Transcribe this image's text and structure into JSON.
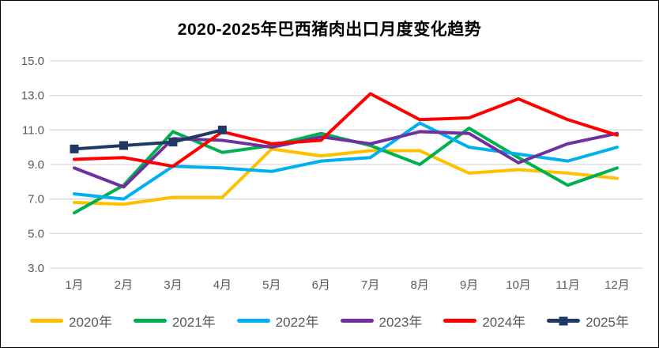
{
  "chart_data": {
    "type": "line",
    "title": "2020-2025年巴西猪肉出口月度变化趋势",
    "categories": [
      "1月",
      "2月",
      "3月",
      "4月",
      "5月",
      "6月",
      "7月",
      "8月",
      "9月",
      "10月",
      "11月",
      "12月"
    ],
    "series": [
      {
        "name": "2020年",
        "color": "#FFC000",
        "values": [
          6.8,
          6.7,
          7.1,
          7.1,
          9.9,
          9.5,
          9.8,
          9.8,
          8.5,
          8.7,
          8.5,
          8.2
        ]
      },
      {
        "name": "2021年",
        "color": "#00B050",
        "values": [
          6.2,
          7.8,
          10.9,
          9.7,
          10.1,
          10.8,
          10.1,
          9.0,
          11.1,
          9.4,
          7.8,
          8.8
        ]
      },
      {
        "name": "2022年",
        "color": "#00B0F0",
        "values": [
          7.3,
          7.0,
          8.9,
          8.8,
          8.6,
          9.2,
          9.4,
          11.4,
          10.0,
          9.6,
          9.2,
          10.0
        ]
      },
      {
        "name": "2023年",
        "color": "#7030A0",
        "values": [
          8.8,
          7.7,
          10.5,
          10.4,
          10.0,
          10.6,
          10.2,
          10.9,
          10.8,
          9.1,
          10.2,
          10.8
        ]
      },
      {
        "name": "2024年",
        "color": "#FF0000",
        "values": [
          9.3,
          9.4,
          8.9,
          10.9,
          10.2,
          10.4,
          13.1,
          11.6,
          11.7,
          12.8,
          11.6,
          10.7
        ]
      },
      {
        "name": "2025年",
        "color": "#1F3864",
        "marker": "square",
        "values": [
          9.9,
          10.1,
          10.3,
          11.0
        ]
      }
    ],
    "ylim": [
      3.0,
      15.0
    ],
    "ytick_labels": [
      "3.0",
      "5.0",
      "7.0",
      "9.0",
      "11.0",
      "13.0",
      "15.0"
    ],
    "grid": true,
    "legend_position": "bottom"
  },
  "colors": {
    "background": "#FFFFFF",
    "border": "#000000",
    "gridline": "#D9D9D9",
    "axis_text": "#595959",
    "title_text": "#000000"
  }
}
